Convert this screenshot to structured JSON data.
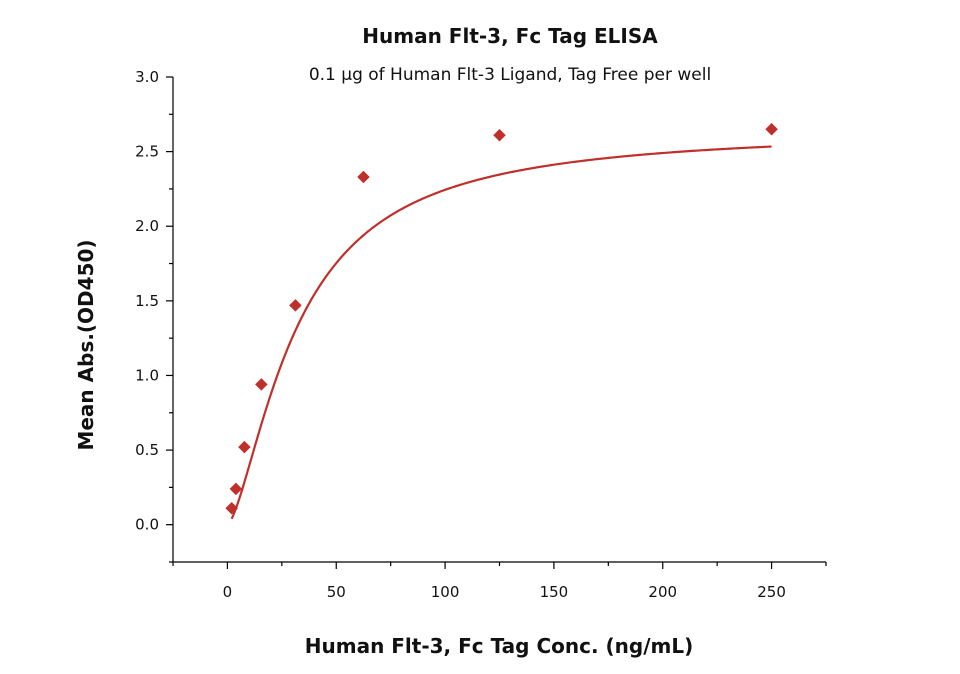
{
  "chart_data": {
    "type": "scatter",
    "title": "Human Flt-3, Fc Tag ELISA",
    "subtitle": "0.1 μg of Human Flt-3 Ligand, Tag Free per well",
    "xlabel": "Human Flt-3, Fc Tag Conc. (ng/mL)",
    "ylabel": "Mean Abs.(OD450)",
    "xlim": [
      -25,
      275
    ],
    "ylim": [
      -0.25,
      3.0
    ],
    "xticks": [
      0,
      50,
      100,
      150,
      200,
      250
    ],
    "yticks": [
      0.0,
      0.5,
      1.0,
      1.5,
      2.0,
      2.5,
      3.0
    ],
    "xtick_labels": [
      "0",
      "50",
      "100",
      "150",
      "200",
      "250"
    ],
    "ytick_labels": [
      "0.0",
      "0.5",
      "1.0",
      "1.5",
      "2.0",
      "2.5",
      "3.0"
    ],
    "grid": false,
    "color": "#c0302b",
    "series": [
      {
        "marker": "diamond",
        "x": [
          1.95,
          3.9,
          7.8,
          15.6,
          31.25,
          62.5,
          125,
          250
        ],
        "y": [
          0.11,
          0.24,
          0.52,
          0.94,
          1.47,
          2.33,
          2.61,
          2.65
        ]
      }
    ],
    "fit_curve": {
      "type": "four-parameter-logistic",
      "bottom": 0.0,
      "top": 2.65,
      "ec50": 32,
      "hill": 1.5
    }
  }
}
